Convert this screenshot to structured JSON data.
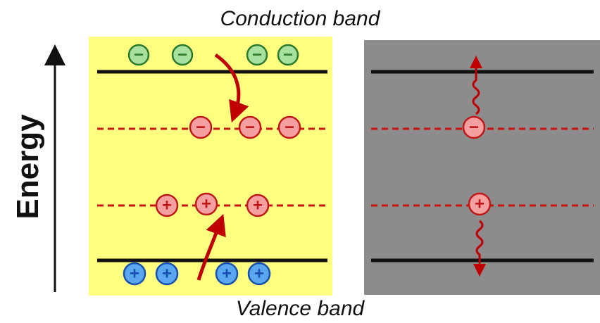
{
  "labels": {
    "conduction": "Conduction band",
    "valence": "Valence band",
    "energy": "Energy"
  },
  "symbols": {
    "minus": "−",
    "plus": "+"
  },
  "colors": {
    "left_panel_bg": "#ffff80",
    "right_panel_bg": "#8c8c8c",
    "band_line": "#111111",
    "trap_line": "#cc1111",
    "arrow": "#c00000",
    "conduction_electron_fill": "#a8e0a0",
    "conduction_electron_stroke": "#2a7a2a",
    "trapped_charge_fill": "#f5a0a0",
    "trapped_charge_stroke": "#c01818",
    "valence_hole_fill": "#5aa6f0",
    "valence_hole_stroke": "#1850b0"
  },
  "panels": {
    "left": {
      "conduction_electrons": 4,
      "trapped_electrons": 3,
      "trapped_holes": 3,
      "valence_holes": 4
    },
    "right": {
      "trapped_electrons": 1,
      "trapped_holes": 1
    }
  }
}
